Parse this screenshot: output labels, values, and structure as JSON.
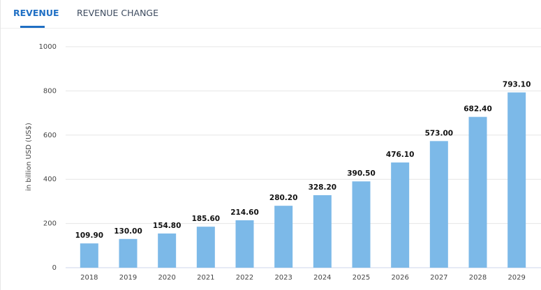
{
  "tabs": [
    "REVENUE",
    "REVENUE CHANGE"
  ],
  "chart_data": {
    "type": "bar",
    "y_label": "in billion USD (US$)",
    "categories": [
      "2018",
      "2019",
      "2020",
      "2021",
      "2022",
      "2023",
      "2024",
      "2025",
      "2026",
      "2027",
      "2028",
      "2029"
    ],
    "values": [
      109.9,
      130,
      154.8,
      185.6,
      214.6,
      280.2,
      328.2,
      390.5,
      476.1,
      573,
      682.4,
      793.1
    ],
    "value_labels": [
      "109.90",
      "130.00",
      "154.80",
      "185.60",
      "214.60",
      "280.20",
      "328.20",
      "390.50",
      "476.10",
      "573.00",
      "682.40",
      "793.10"
    ],
    "color": "#7cb9e8",
    "ylim": [
      0,
      1000
    ],
    "yticks": [
      0,
      200,
      400,
      600,
      800,
      1000
    ],
    "grid": true
  }
}
